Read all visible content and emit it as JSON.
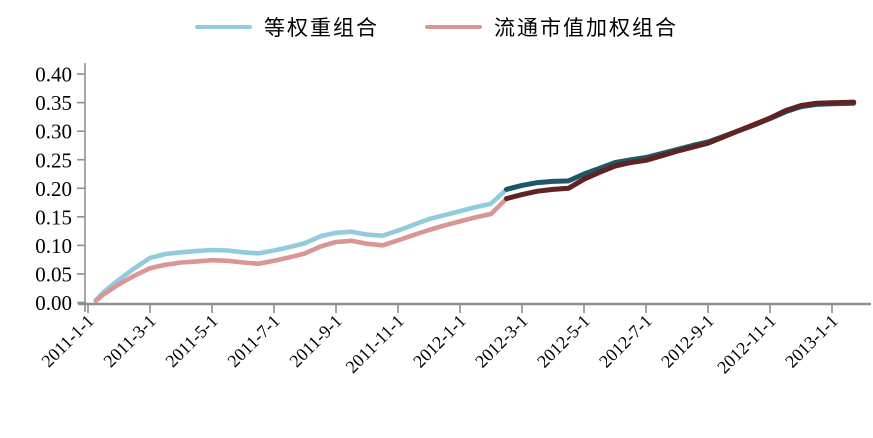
{
  "legend": {
    "items": [
      {
        "label": "等权重组合",
        "swatch_color": "#92CCDC"
      },
      {
        "label": "流通市值加权组合",
        "swatch_color": "#D99694"
      }
    ]
  },
  "axis": {
    "line_color": "#8F8F8F",
    "tick_color": "#8F8F8F",
    "label_color": "#000000"
  },
  "chart_data": {
    "type": "line",
    "title": "",
    "xlabel": "",
    "ylabel": "",
    "grid": false,
    "legend_position": "top-center",
    "ylim": [
      0.0,
      0.4
    ],
    "y_tick_step": 0.05,
    "y_tick_labels": [
      "0.00",
      "0.05",
      "0.10",
      "0.15",
      "0.20",
      "0.25",
      "0.30",
      "0.35",
      "0.40"
    ],
    "x_unit": "months since 2011-01-01 (semi-monthly samples)",
    "x_tick_positions_months": [
      0,
      2,
      4,
      6,
      8,
      10,
      12,
      14,
      16,
      18,
      20,
      22,
      24
    ],
    "x_tick_labels": [
      "2011-1-1",
      "2011-3-1",
      "2011-5-1",
      "2011-7-1",
      "2011-9-1",
      "2011-11-1",
      "2012-1-1",
      "2012-3-1",
      "2012-5-1",
      "2012-7-1",
      "2012-9-1",
      "2012-11-1",
      "2013-1-1"
    ],
    "x": [
      0.25,
      0.5,
      1,
      1.5,
      2,
      2.5,
      3,
      3.5,
      4,
      4.5,
      5,
      5.5,
      6,
      6.5,
      7,
      7.5,
      8,
      8.5,
      9,
      9.5,
      10,
      10.5,
      11,
      11.5,
      12,
      12.5,
      13,
      13.5,
      14,
      14.5,
      15,
      15.5,
      16,
      16.5,
      17,
      17.5,
      18,
      18.5,
      19,
      19.5,
      20,
      20.5,
      21,
      21.5,
      22,
      22.5,
      23,
      23.5,
      24,
      24.7
    ],
    "series": [
      {
        "name": "等权重组合",
        "color_light": "#92CCDC",
        "color_dark": "#1F5864",
        "split_index": 27,
        "values": [
          0.004,
          0.018,
          0.04,
          0.06,
          0.078,
          0.085,
          0.088,
          0.09,
          0.092,
          0.091,
          0.088,
          0.086,
          0.091,
          0.097,
          0.104,
          0.116,
          0.122,
          0.124,
          0.119,
          0.117,
          0.126,
          0.136,
          0.146,
          0.153,
          0.16,
          0.167,
          0.173,
          0.198,
          0.205,
          0.21,
          0.212,
          0.213,
          0.225,
          0.235,
          0.245,
          0.25,
          0.254,
          0.261,
          0.268,
          0.275,
          0.281,
          0.291,
          0.301,
          0.311,
          0.322,
          0.334,
          0.343,
          0.347,
          0.348,
          0.349
        ]
      },
      {
        "name": "流通市值加权组合",
        "color_light": "#D99694",
        "color_dark": "#5F2422",
        "split_index": 27,
        "values": [
          0.003,
          0.014,
          0.032,
          0.047,
          0.06,
          0.066,
          0.07,
          0.072,
          0.074,
          0.073,
          0.07,
          0.068,
          0.073,
          0.079,
          0.086,
          0.098,
          0.106,
          0.108,
          0.103,
          0.1,
          0.109,
          0.118,
          0.127,
          0.135,
          0.142,
          0.149,
          0.155,
          0.182,
          0.189,
          0.195,
          0.198,
          0.2,
          0.216,
          0.228,
          0.239,
          0.245,
          0.249,
          0.257,
          0.265,
          0.272,
          0.279,
          0.29,
          0.301,
          0.312,
          0.323,
          0.336,
          0.345,
          0.349,
          0.35,
          0.351
        ]
      }
    ]
  }
}
